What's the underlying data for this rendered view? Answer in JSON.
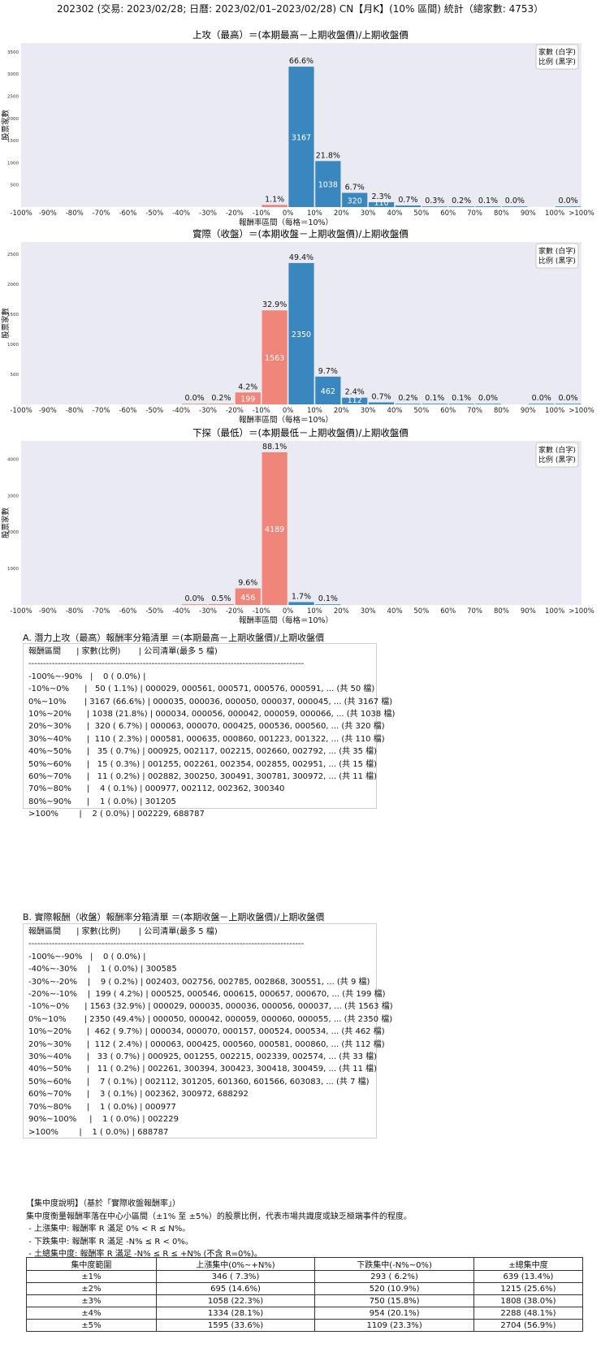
{
  "title": "202302 (交易: 2023/02/28; 日曆: 2023/02/01–2023/02/28) CN【月K】(10% 區間) 統計（總家數: 4753）",
  "chart_data": [
    {
      "type": "bar",
      "title": "上攻（最高）＝(本期最高－上期收盤價)/上期收盤價",
      "xlabel": "報酬率區間（每格＝10%）",
      "ylabel": "股票家數",
      "legend": [
        "家數 (白字)",
        "比例 (黑字)"
      ],
      "legend_position": "top-right",
      "grid": false,
      "ylim": [
        0,
        3700
      ],
      "yticks": [
        500,
        1000,
        1500,
        2000,
        2500,
        3000,
        3500
      ],
      "x_ticks": [
        "-100%",
        "-90%",
        "-80%",
        "-70%",
        "-60%",
        "-50%",
        "-40%",
        "-30%",
        "-20%",
        "-10%",
        "0%",
        "10%",
        "20%",
        "30%",
        "40%",
        "50%",
        "60%",
        "70%",
        "80%",
        "90%",
        "100%",
        ">100%"
      ],
      "bars": [
        {
          "x": -1,
          "value": 50,
          "pct": "1.1%"
        },
        {
          "x": 0,
          "value": 3167,
          "pct": "66.6%",
          "count_label": "3167"
        },
        {
          "x": 1,
          "value": 1038,
          "pct": "21.8%",
          "count_label": "1038"
        },
        {
          "x": 2,
          "value": 320,
          "pct": "6.7%",
          "count_label": "320"
        },
        {
          "x": 3,
          "value": 110,
          "pct": "2.3%",
          "count_label": "110"
        },
        {
          "x": 4,
          "value": 35,
          "pct": "0.7%"
        },
        {
          "x": 5,
          "value": 15,
          "pct": "0.3%"
        },
        {
          "x": 6,
          "value": 11,
          "pct": "0.2%"
        },
        {
          "x": 7,
          "value": 4,
          "pct": "0.1%"
        },
        {
          "x": 8,
          "value": 1,
          "pct": "0.0%"
        },
        {
          "x": 10,
          "value": 2,
          "pct": "0.0%"
        }
      ]
    },
    {
      "type": "bar",
      "title": "實際（收盤）＝(本期收盤－上期收盤價)/上期收盤價",
      "xlabel": "報酬率區間（每格＝10%）",
      "ylabel": "股票家數",
      "legend": [
        "家數 (白字)",
        "比例 (黑字)"
      ],
      "legend_position": "top-right",
      "grid": false,
      "ylim": [
        0,
        2700
      ],
      "yticks": [
        500,
        1000,
        1500,
        2000,
        2500
      ],
      "x_ticks": [
        "-100%",
        "-90%",
        "-80%",
        "-70%",
        "-60%",
        "-50%",
        "-40%",
        "-30%",
        "-20%",
        "-10%",
        "0%",
        "10%",
        "20%",
        "30%",
        "40%",
        "50%",
        "60%",
        "70%",
        "80%",
        "90%",
        "100%",
        ">100%"
      ],
      "bars": [
        {
          "x": -4,
          "value": 1,
          "pct": "0.0%"
        },
        {
          "x": -3,
          "value": 9,
          "pct": "0.2%"
        },
        {
          "x": -2,
          "value": 199,
          "pct": "4.2%",
          "count_label": "199"
        },
        {
          "x": -1,
          "value": 1563,
          "pct": "32.9%",
          "count_label": "1563"
        },
        {
          "x": 0,
          "value": 2350,
          "pct": "49.4%",
          "count_label": "2350"
        },
        {
          "x": 1,
          "value": 462,
          "pct": "9.7%",
          "count_label": "462"
        },
        {
          "x": 2,
          "value": 112,
          "pct": "2.4%",
          "count_label": "112"
        },
        {
          "x": 3,
          "value": 33,
          "pct": "0.7%"
        },
        {
          "x": 4,
          "value": 11,
          "pct": "0.2%"
        },
        {
          "x": 5,
          "value": 7,
          "pct": "0.1%"
        },
        {
          "x": 6,
          "value": 3,
          "pct": "0.1%"
        },
        {
          "x": 7,
          "value": 1,
          "pct": "0.0%"
        },
        {
          "x": 9,
          "value": 1,
          "pct": "0.0%"
        },
        {
          "x": 10,
          "value": 1,
          "pct": "0.0%"
        }
      ]
    },
    {
      "type": "bar",
      "title": "下探（最低）＝(本期最低－上期收盤價)/上期收盤價",
      "xlabel": "報酬率區間（每格＝10%）",
      "ylabel": "股票家數",
      "legend": [
        "家數 (白字)",
        "比例 (黑字)"
      ],
      "legend_position": "top-right",
      "grid": false,
      "ylim": [
        0,
        4500
      ],
      "yticks": [
        1000,
        2000,
        3000,
        4000
      ],
      "x_ticks": [
        "-100%",
        "-90%",
        "-80%",
        "-70%",
        "-60%",
        "-50%",
        "-40%",
        "-30%",
        "-20%",
        "-10%",
        "0%",
        "10%",
        "20%",
        "30%",
        "40%",
        "50%",
        "60%",
        "70%",
        "80%",
        "90%",
        "100%",
        ">100%"
      ],
      "bars": [
        {
          "x": -4,
          "value": 1,
          "pct": "0.0%"
        },
        {
          "x": -3,
          "value": 24,
          "pct": "0.5%"
        },
        {
          "x": -2,
          "value": 456,
          "pct": "9.6%",
          "count_label": "456"
        },
        {
          "x": -1,
          "value": 4189,
          "pct": "88.1%",
          "count_label": "4189"
        },
        {
          "x": 0,
          "value": 79,
          "pct": "1.7%"
        },
        {
          "x": 1,
          "value": 4,
          "pct": "0.1%"
        }
      ]
    }
  ],
  "list_a": {
    "title": "A. 潛力上攻（最高）報酬率分箱清單 ＝(本期最高－上期收盤價)/上期收盤價",
    "lines": [
      "報酬區間      | 家數(比例)       | 公司清單(最多 5 檔)",
      "----------------------------------------------------------------------------------------------",
      "-100%~-90%   |    0 ( 0.0%) |",
      "-10%~0%      |   50 ( 1.1%) | 000029, 000561, 000571, 000576, 000591, ... (共 50 檔)",
      "0%~10%       | 3167 (66.6%) | 000035, 000036, 000050, 000037, 000045, ... (共 3167 檔)",
      "10%~20%      | 1038 (21.8%) | 000034, 000056, 000042, 000059, 000066, ... (共 1038 檔)",
      "20%~30%      |  320 ( 6.7%) | 000063, 000070, 000425, 000536, 000560, ... (共 320 檔)",
      "30%~40%      |  110 ( 2.3%) | 000581, 000635, 000860, 001223, 001322, ... (共 110 檔)",
      "40%~50%      |   35 ( 0.7%) | 000925, 002117, 002215, 002660, 002792, ... (共 35 檔)",
      "50%~60%      |   15 ( 0.3%) | 001255, 002261, 002354, 002855, 002951, ... (共 15 檔)",
      "60%~70%      |   11 ( 0.2%) | 002882, 300250, 300491, 300781, 300972, ... (共 11 檔)",
      "70%~80%      |    4 ( 0.1%) | 000977, 002112, 002362, 300340",
      "80%~90%      |    1 ( 0.0%) | 301205",
      ">100%        |    2 ( 0.0%) | 002229, 688787"
    ]
  },
  "list_b": {
    "title": "B. 實際報酬（收盤）報酬率分箱清單 ＝(本期收盤－上期收盤價)/上期收盤價",
    "lines": [
      "報酬區間      | 家數(比例)       | 公司清單(最多 5 檔)",
      "----------------------------------------------------------------------------------------------",
      "-100%~-90%   |    0 ( 0.0%) |",
      "-40%~-30%    |    1 ( 0.0%) | 300585",
      "-30%~-20%    |    9 ( 0.2%) | 002403, 002756, 002785, 002868, 300551, ... (共 9 檔)",
      "-20%~-10%    |  199 ( 4.2%) | 000525, 000546, 000615, 000657, 000670, ... (共 199 檔)",
      "-10%~0%      | 1563 (32.9%) | 000029, 000035, 000036, 000056, 000037, ... (共 1563 檔)",
      "0%~10%       | 2350 (49.4%) | 000050, 000042, 000059, 000060, 000055, ... (共 2350 檔)",
      "10%~20%      |  462 ( 9.7%) | 000034, 000070, 000157, 000524, 000534, ... (共 462 檔)",
      "20%~30%      |  112 ( 2.4%) | 000063, 000425, 000560, 000581, 000860, ... (共 112 檔)",
      "30%~40%      |   33 ( 0.7%) | 000925, 001255, 002215, 002339, 002574, ... (共 33 檔)",
      "40%~50%      |   11 ( 0.2%) | 002261, 300394, 300423, 300418, 300459, ... (共 11 檔)",
      "50%~60%      |    7 ( 0.1%) | 002112, 301205, 601360, 601566, 603083, ... (共 7 檔)",
      "60%~70%      |    3 ( 0.1%) | 002362, 300972, 688292",
      "70%~80%      |    1 ( 0.0%) | 000977",
      "90%~100%     |    1 ( 0.0%) | 002229",
      ">100%        |    1 ( 0.0%) | 688787"
    ]
  },
  "notes": [
    "【集中度說明】（基於「實際收盤報酬率」）",
    "集中度衡量報酬率落在中心小區間（±1% 至 ±5%）的股票比例，代表市場共識度或缺乏極端事件的程度。",
    " - 上漲集中: 報酬率 R 滿足 0% < R ≤ N%。",
    " - 下跌集中: 報酬率 R 滿足 -N% ≤ R < 0%。",
    " - 土總集中度: 報酬率 R 滿足 -N% ≤ R ≤ +N% (不含 R=0%)。"
  ],
  "table": {
    "headers": [
      "集中度範圍",
      "上漲集中(0%~+N%)",
      "下跌集中(-N%~0%)",
      "±總集中度"
    ],
    "rows": [
      [
        "±1%",
        "346 ( 7.3%)",
        "293 ( 6.2%)",
        "639 (13.4%)"
      ],
      [
        "±2%",
        "695 (14.6%)",
        "520 (10.9%)",
        "1215 (25.6%)"
      ],
      [
        "±3%",
        "1058 (22.3%)",
        "750 (15.8%)",
        "1808 (38.0%)"
      ],
      [
        "±4%",
        "1334 (28.1%)",
        "954 (20.1%)",
        "2288 (48.1%)"
      ],
      [
        "±5%",
        "1595 (33.6%)",
        "1109 (23.3%)",
        "2704 (56.9%)"
      ]
    ]
  },
  "colors": {
    "positive": "#3a87c0",
    "negative": "#f0867a",
    "plot_bg": "#eaeaf2"
  }
}
